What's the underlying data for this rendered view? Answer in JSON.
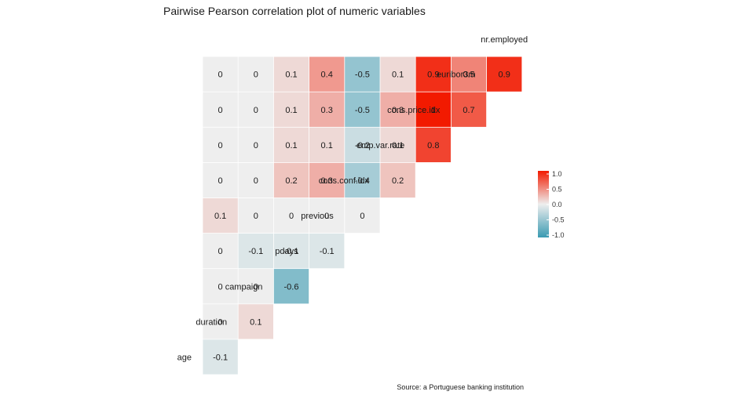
{
  "chart_data": {
    "type": "heatmap",
    "title": "Pairwise Pearson correlation plot of numeric variables",
    "caption": "Source: a Portuguese banking institution",
    "variables": [
      "age",
      "duration",
      "campaign",
      "pdays",
      "previous",
      "cons.conf.idx",
      "emp.var.rate",
      "cons.price.idx",
      "euribor3m",
      "nr.employed"
    ],
    "cells": [
      {
        "row": "duration",
        "col": "age",
        "value": -0.1,
        "label": "-0.1"
      },
      {
        "row": "campaign",
        "col": "age",
        "value": 0,
        "label": "0"
      },
      {
        "row": "campaign",
        "col": "duration",
        "value": 0.1,
        "label": "0.1"
      },
      {
        "row": "pdays",
        "col": "age",
        "value": 0,
        "label": "0"
      },
      {
        "row": "pdays",
        "col": "duration",
        "value": 0,
        "label": "0"
      },
      {
        "row": "pdays",
        "col": "campaign",
        "value": -0.6,
        "label": "-0.6"
      },
      {
        "row": "previous",
        "col": "age",
        "value": 0,
        "label": "0"
      },
      {
        "row": "previous",
        "col": "duration",
        "value": -0.1,
        "label": "-0.1"
      },
      {
        "row": "previous",
        "col": "campaign",
        "value": -0.1,
        "label": "-0.1"
      },
      {
        "row": "previous",
        "col": "pdays",
        "value": -0.1,
        "label": "-0.1"
      },
      {
        "row": "cons.conf.idx",
        "col": "age",
        "value": 0.1,
        "label": "0.1"
      },
      {
        "row": "cons.conf.idx",
        "col": "duration",
        "value": 0,
        "label": "0"
      },
      {
        "row": "cons.conf.idx",
        "col": "campaign",
        "value": 0,
        "label": "0"
      },
      {
        "row": "cons.conf.idx",
        "col": "pdays",
        "value": 0,
        "label": "0"
      },
      {
        "row": "cons.conf.idx",
        "col": "previous",
        "value": 0,
        "label": "0"
      },
      {
        "row": "emp.var.rate",
        "col": "age",
        "value": 0,
        "label": "0"
      },
      {
        "row": "emp.var.rate",
        "col": "duration",
        "value": 0,
        "label": "0"
      },
      {
        "row": "emp.var.rate",
        "col": "campaign",
        "value": 0.2,
        "label": "0.2"
      },
      {
        "row": "emp.var.rate",
        "col": "pdays",
        "value": 0.3,
        "label": "0.3"
      },
      {
        "row": "emp.var.rate",
        "col": "previous",
        "value": -0.4,
        "label": "-0.4"
      },
      {
        "row": "emp.var.rate",
        "col": "cons.conf.idx",
        "value": 0.2,
        "label": "0.2"
      },
      {
        "row": "cons.price.idx",
        "col": "age",
        "value": 0,
        "label": "0"
      },
      {
        "row": "cons.price.idx",
        "col": "duration",
        "value": 0,
        "label": "0"
      },
      {
        "row": "cons.price.idx",
        "col": "campaign",
        "value": 0.1,
        "label": "0.1"
      },
      {
        "row": "cons.price.idx",
        "col": "pdays",
        "value": 0.1,
        "label": "0.1"
      },
      {
        "row": "cons.price.idx",
        "col": "previous",
        "value": -0.2,
        "label": "-0.2"
      },
      {
        "row": "cons.price.idx",
        "col": "cons.conf.idx",
        "value": 0.1,
        "label": "0.1"
      },
      {
        "row": "cons.price.idx",
        "col": "emp.var.rate",
        "value": 0.8,
        "label": "0.8"
      },
      {
        "row": "euribor3m",
        "col": "age",
        "value": 0,
        "label": "0"
      },
      {
        "row": "euribor3m",
        "col": "duration",
        "value": 0,
        "label": "0"
      },
      {
        "row": "euribor3m",
        "col": "campaign",
        "value": 0.1,
        "label": "0.1"
      },
      {
        "row": "euribor3m",
        "col": "pdays",
        "value": 0.3,
        "label": "0.3"
      },
      {
        "row": "euribor3m",
        "col": "previous",
        "value": -0.5,
        "label": "-0.5"
      },
      {
        "row": "euribor3m",
        "col": "cons.conf.idx",
        "value": 0.3,
        "label": "0.3"
      },
      {
        "row": "euribor3m",
        "col": "emp.var.rate",
        "value": 1.0,
        "label": "1"
      },
      {
        "row": "euribor3m",
        "col": "cons.price.idx",
        "value": 0.7,
        "label": "0.7"
      },
      {
        "row": "nr.employed",
        "col": "age",
        "value": 0,
        "label": "0"
      },
      {
        "row": "nr.employed",
        "col": "duration",
        "value": 0,
        "label": "0"
      },
      {
        "row": "nr.employed",
        "col": "campaign",
        "value": 0.1,
        "label": "0.1"
      },
      {
        "row": "nr.employed",
        "col": "pdays",
        "value": 0.4,
        "label": "0.4"
      },
      {
        "row": "nr.employed",
        "col": "previous",
        "value": -0.5,
        "label": "-0.5"
      },
      {
        "row": "nr.employed",
        "col": "cons.conf.idx",
        "value": 0.1,
        "label": "0.1"
      },
      {
        "row": "nr.employed",
        "col": "emp.var.rate",
        "value": 0.9,
        "label": "0.9"
      },
      {
        "row": "nr.employed",
        "col": "cons.price.idx",
        "value": 0.5,
        "label": "0.5"
      },
      {
        "row": "nr.employed",
        "col": "euribor3m",
        "value": 0.9,
        "label": "0.9"
      }
    ],
    "color_scale": {
      "low": "#3a9ab2",
      "mid": "#eeeeee",
      "high": "#f21a00",
      "range": [
        -1,
        1
      ]
    },
    "legend": {
      "position": "right",
      "ticks": [
        "1.0",
        "0.5",
        "0.0",
        "-0.5",
        "-1.0"
      ],
      "tick_values": [
        1.0,
        0.5,
        0.0,
        -0.5,
        -1.0
      ]
    }
  }
}
